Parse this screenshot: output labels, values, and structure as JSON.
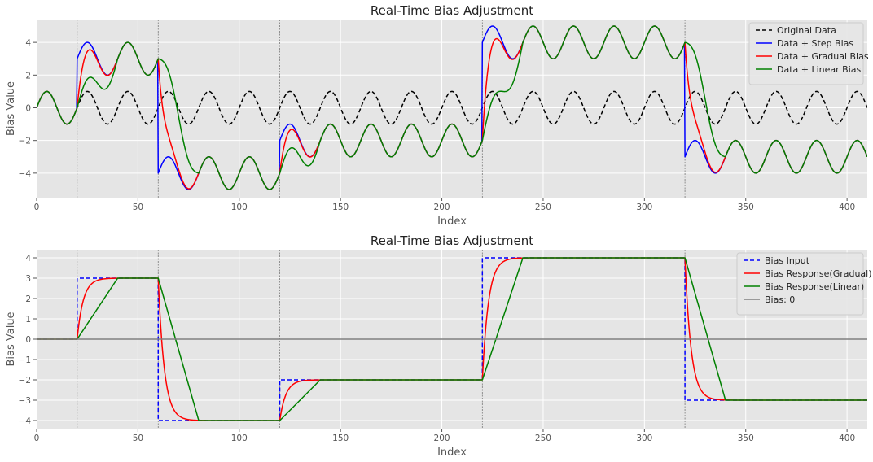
{
  "chart_data": [
    {
      "type": "line",
      "title": "Real-Time Bias Adjustment",
      "xlabel": "Index",
      "ylabel": "Bias Value",
      "xlim": [
        0,
        410
      ],
      "ylim": [
        -5.5,
        5.4
      ],
      "x_ticks": [
        0,
        50,
        100,
        150,
        200,
        250,
        300,
        350,
        400
      ],
      "y_ticks": [
        -4,
        -2,
        0,
        2,
        4
      ],
      "grid": true,
      "legend_position": "top-right",
      "vlines": [
        20,
        60,
        120,
        220,
        320
      ],
      "x_range": [
        0,
        410
      ],
      "sine": {
        "amplitude": 1,
        "period": 20
      },
      "bias_steps": [
        {
          "x": 20,
          "value": 3
        },
        {
          "x": 60,
          "value": -4
        },
        {
          "x": 120,
          "value": -2
        },
        {
          "x": 220,
          "value": 4
        },
        {
          "x": 320,
          "value": -3
        }
      ],
      "gradual_time_constant": 3,
      "linear_ramp_length": 20,
      "series": [
        {
          "name": "Original Data",
          "kind": "sine",
          "color": "#000000",
          "dash": true
        },
        {
          "name": "Data + Step Bias",
          "kind": "sine+step",
          "color": "#0000ff"
        },
        {
          "name": "Data + Gradual Bias",
          "kind": "sine+gradual",
          "color": "#ff0000"
        },
        {
          "name": "Data + Linear Bias",
          "kind": "sine+linear",
          "color": "#008000"
        }
      ]
    },
    {
      "type": "line",
      "title": "Real-Time Bias Adjustment",
      "xlabel": "Index",
      "ylabel": "Bias Value",
      "xlim": [
        0,
        410
      ],
      "ylim": [
        -4.4,
        4.4
      ],
      "x_ticks": [
        0,
        50,
        100,
        150,
        200,
        250,
        300,
        350,
        400
      ],
      "y_ticks": [
        -4,
        -3,
        -2,
        -1,
        0,
        1,
        2,
        3,
        4
      ],
      "grid": true,
      "legend_position": "top-right",
      "vlines": [
        20,
        60,
        120,
        220,
        320
      ],
      "x_range": [
        0,
        410
      ],
      "bias_steps": [
        {
          "x": 20,
          "value": 3
        },
        {
          "x": 60,
          "value": -4
        },
        {
          "x": 120,
          "value": -2
        },
        {
          "x": 220,
          "value": 4
        },
        {
          "x": 320,
          "value": -3
        }
      ],
      "gradual_time_constant": 3,
      "linear_ramp_length": 20,
      "series": [
        {
          "name": "Bias Input",
          "kind": "step",
          "color": "#0000ff",
          "dash": true
        },
        {
          "name": "Bias Response(Gradual)",
          "kind": "gradual",
          "color": "#ff0000"
        },
        {
          "name": "Bias Response(Linear)",
          "kind": "linear",
          "color": "#008000"
        },
        {
          "name": "Bias: 0",
          "kind": "zero",
          "color": "#808080"
        }
      ]
    }
  ]
}
